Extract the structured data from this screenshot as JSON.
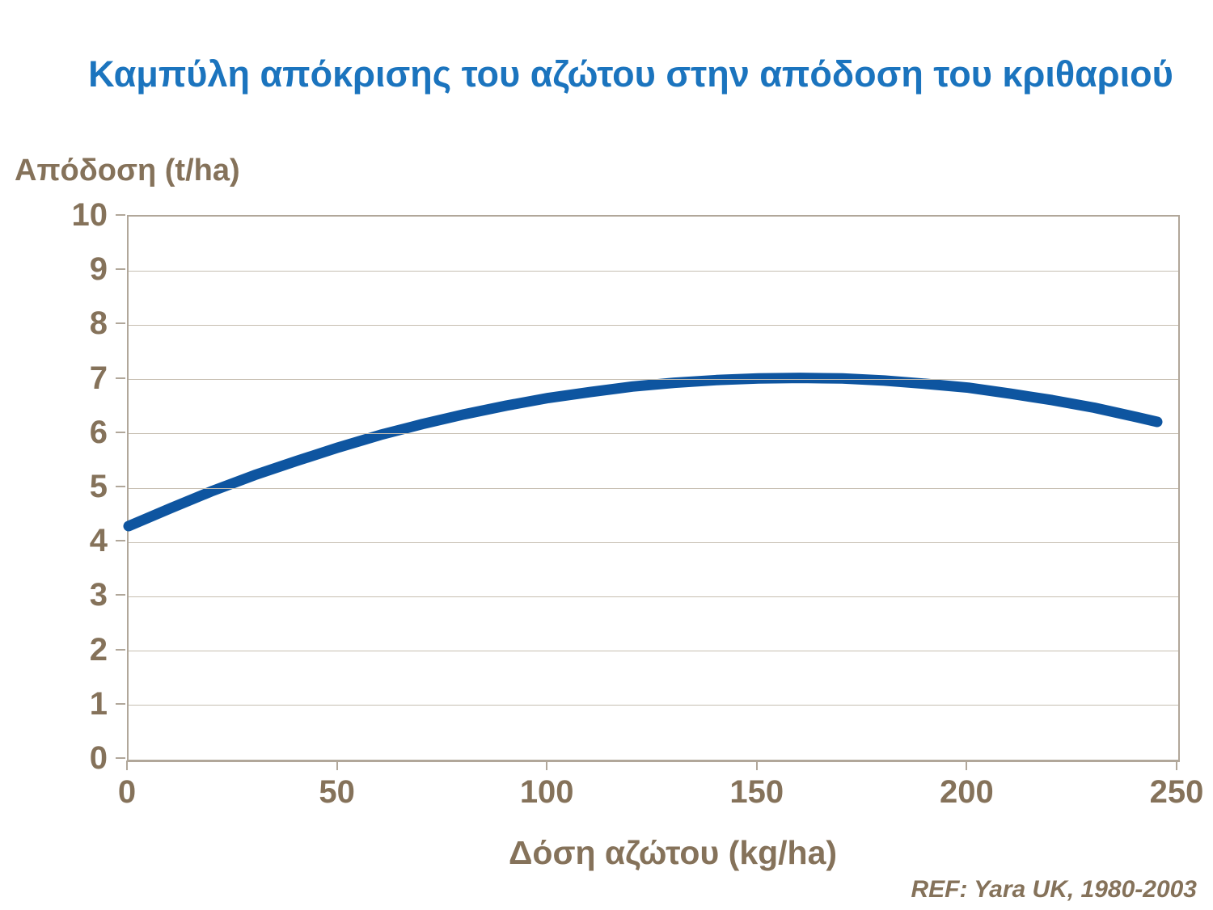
{
  "chart_data": {
    "type": "line",
    "title": "Καμπύλη απόκρισης του αζώτου στην απόδοση του κριθαριού",
    "ylabel": "Απόδοση (t/ha)",
    "xlabel": "Δόση αζώτου (kg/ha)",
    "ref": "REF: Yara UK, 1980-2003",
    "xlim": [
      0,
      250
    ],
    "ylim": [
      0,
      10
    ],
    "x_ticks": [
      0,
      50,
      100,
      150,
      200,
      250
    ],
    "y_ticks": [
      0,
      1,
      2,
      3,
      4,
      5,
      6,
      7,
      8,
      9,
      10
    ],
    "grid": "horizontal",
    "legend_position": "none",
    "series": [
      {
        "x": [
          0,
          10,
          20,
          30,
          40,
          50,
          60,
          70,
          80,
          90,
          100,
          110,
          120,
          130,
          140,
          150,
          160,
          170,
          180,
          190,
          200,
          210,
          220,
          230,
          240,
          245
        ],
        "y": [
          4.3,
          4.63,
          4.95,
          5.24,
          5.5,
          5.75,
          5.98,
          6.18,
          6.36,
          6.52,
          6.66,
          6.77,
          6.87,
          6.94,
          6.99,
          7.02,
          7.03,
          7.02,
          6.98,
          6.92,
          6.85,
          6.74,
          6.62,
          6.48,
          6.31,
          6.22
        ]
      }
    ]
  },
  "colors": {
    "background": "#ffffff",
    "title": "#1b74be",
    "curve": "#0e55a0",
    "axis_text": "#85725a",
    "gridline": "#c6beb1",
    "frame": "#b1a79a"
  }
}
